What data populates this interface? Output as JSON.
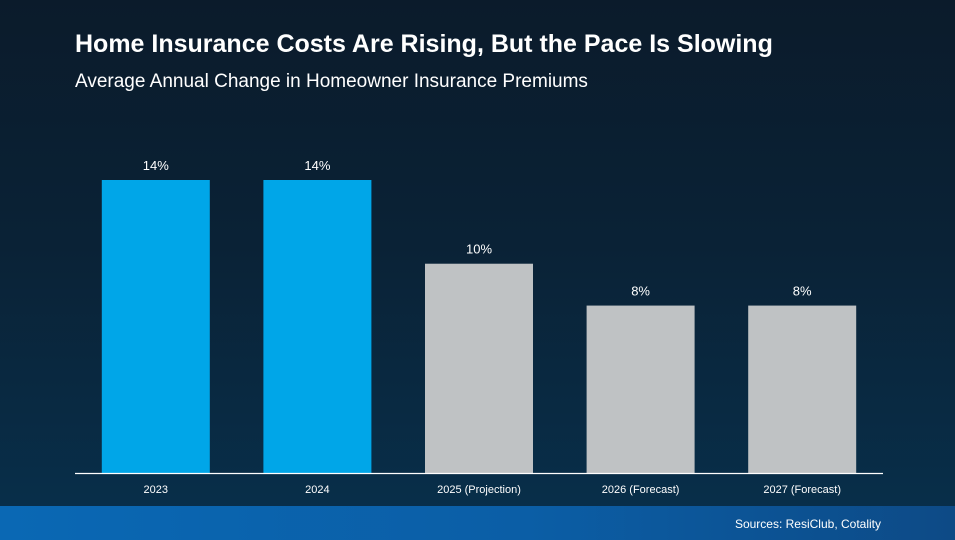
{
  "header": {
    "title": "Home Insurance Costs Are Rising, But the Pace Is Slowing",
    "subtitle": "Average Annual Change in Homeowner Insurance Premiums"
  },
  "footer": {
    "source": "Sources: ResiClub, Cotality"
  },
  "colors": {
    "actual": "#00a6e8",
    "projected": "#bfc2c4",
    "axis": "#ffffff",
    "label": "#ffffff"
  },
  "chart_data": {
    "type": "bar",
    "title": "Home Insurance Costs Are Rising, But the Pace Is Slowing",
    "subtitle": "Average Annual Change in Homeowner Insurance Premiums",
    "categories": [
      "2023",
      "2024",
      "2025 (Projection)",
      "2026 (Forecast)",
      "2027 (Forecast)"
    ],
    "values": [
      14,
      14,
      10,
      8,
      8
    ],
    "value_labels": [
      "14%",
      "14%",
      "10%",
      "8%",
      "8%"
    ],
    "status": [
      "actual",
      "actual",
      "projection",
      "forecast",
      "forecast"
    ],
    "xlabel": "",
    "ylabel": "",
    "ylim": [
      0,
      14
    ],
    "grid": false,
    "legend": "none"
  }
}
